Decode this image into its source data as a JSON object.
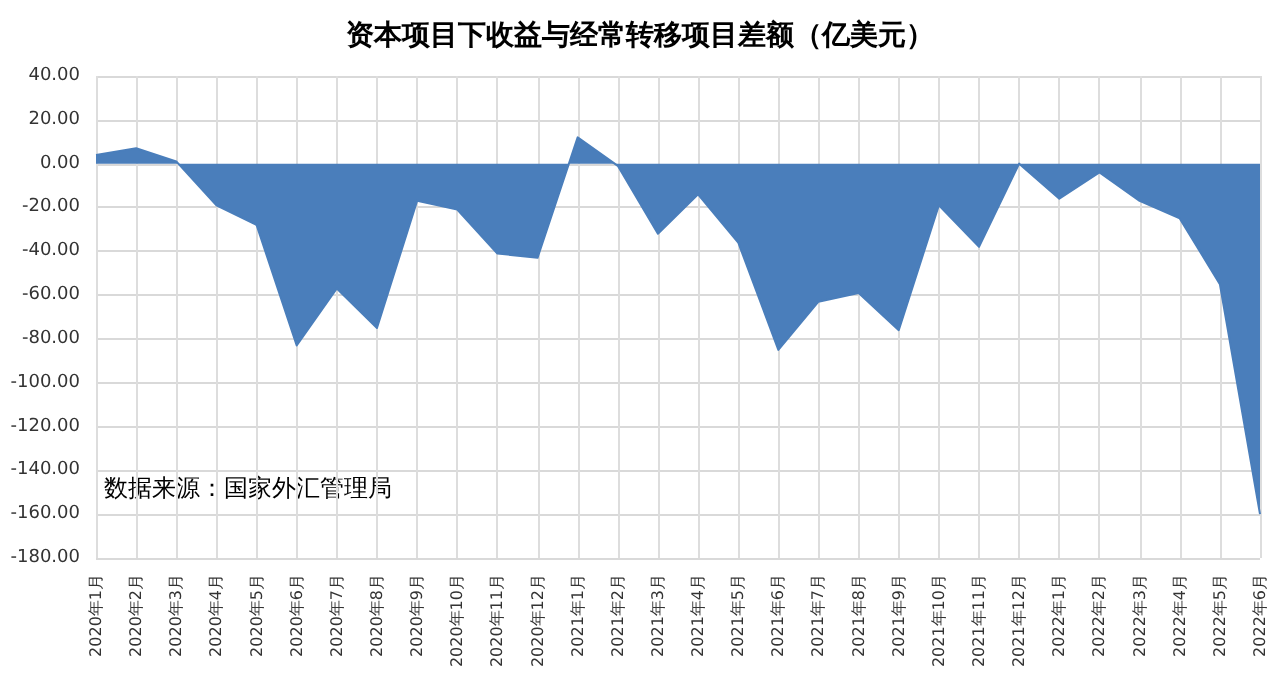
{
  "chart_data": {
    "type": "area",
    "title": "资本项目下收益与经常转移项目差额（亿美元）",
    "categories": [
      "2020年1月",
      "2020年2月",
      "2020年3月",
      "2020年4月",
      "2020年5月",
      "2020年6月",
      "2020年7月",
      "2020年8月",
      "2020年9月",
      "2020年10月",
      "2020年11月",
      "2020年12月",
      "2021年1月",
      "2021年2月",
      "2021年3月",
      "2021年4月",
      "2021年5月",
      "2021年6月",
      "2021年7月",
      "2021年8月",
      "2021年9月",
      "2021年10月",
      "2021年11月",
      "2021年12月",
      "2022年1月",
      "2022年2月",
      "2022年3月",
      "2022年4月",
      "2022年5月",
      "2022年6月"
    ],
    "series": [
      {
        "color": "#4a7ebb",
        "values": [
          4,
          7,
          1,
          -19,
          -28,
          -83,
          -57,
          -75,
          -17,
          -21,
          -41,
          -43,
          12,
          -1,
          -32,
          -14,
          -36,
          -85,
          -63,
          -59,
          -76,
          -19,
          -38,
          0,
          -16,
          -4,
          -17,
          -25,
          -55,
          -160
        ]
      }
    ],
    "ylim": [
      -180,
      40
    ],
    "yticks": [
      {
        "value": -180,
        "label": "-180.00"
      },
      {
        "value": -160,
        "label": "-160.00"
      },
      {
        "value": -140,
        "label": "-140.00"
      },
      {
        "value": -120,
        "label": "-120.00"
      },
      {
        "value": -100,
        "label": "-100.00"
      },
      {
        "value": -80,
        "label": "-80.00"
      },
      {
        "value": -60,
        "label": "-60.00"
      },
      {
        "value": -40,
        "label": "-40.00"
      },
      {
        "value": -20,
        "label": "-20.00"
      },
      {
        "value": 0,
        "label": "0.00"
      },
      {
        "value": 20,
        "label": "20.00"
      },
      {
        "value": 40,
        "label": "40.00"
      }
    ],
    "grid": true,
    "annotations": [
      "数据来源：国家外汇管理局"
    ]
  }
}
